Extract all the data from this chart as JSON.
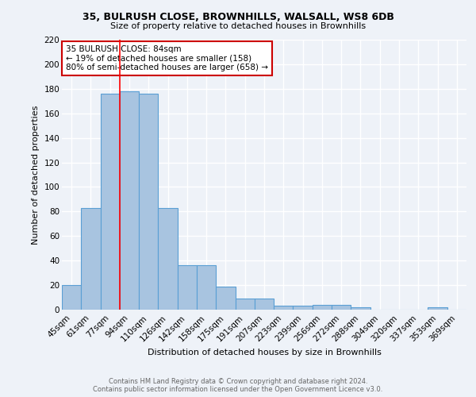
{
  "title1": "35, BULRUSH CLOSE, BROWNHILLS, WALSALL, WS8 6DB",
  "title2": "Size of property relative to detached houses in Brownhills",
  "xlabel": "Distribution of detached houses by size in Brownhills",
  "ylabel": "Number of detached properties",
  "categories": [
    "45sqm",
    "61sqm",
    "77sqm",
    "94sqm",
    "110sqm",
    "126sqm",
    "142sqm",
    "158sqm",
    "175sqm",
    "191sqm",
    "207sqm",
    "223sqm",
    "239sqm",
    "256sqm",
    "272sqm",
    "288sqm",
    "304sqm",
    "320sqm",
    "337sqm",
    "353sqm",
    "369sqm"
  ],
  "values": [
    20,
    83,
    176,
    178,
    176,
    83,
    36,
    36,
    19,
    9,
    9,
    3,
    3,
    4,
    4,
    2,
    0,
    0,
    0,
    2,
    0
  ],
  "bar_color": "#a8c4e0",
  "bar_edge_color": "#5a9fd4",
  "background_color": "#eef2f8",
  "grid_color": "#ffffff",
  "red_line_x": 2.5,
  "annotation_text": "35 BULRUSH CLOSE: 84sqm\n← 19% of detached houses are smaller (158)\n80% of semi-detached houses are larger (658) →",
  "annotation_box_color": "#ffffff",
  "annotation_box_edge": "#cc0000",
  "footer1": "Contains HM Land Registry data © Crown copyright and database right 2024.",
  "footer2": "Contains public sector information licensed under the Open Government Licence v3.0.",
  "ylim": [
    0,
    220
  ],
  "yticks": [
    0,
    20,
    40,
    60,
    80,
    100,
    120,
    140,
    160,
    180,
    200,
    220
  ]
}
